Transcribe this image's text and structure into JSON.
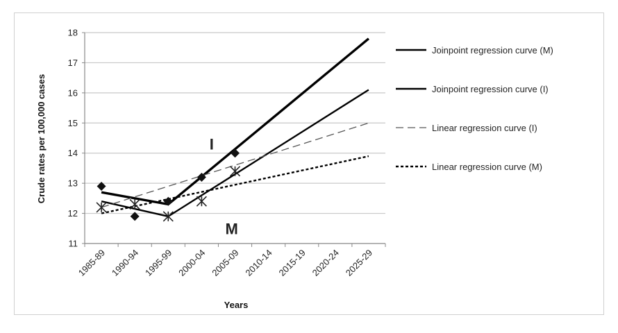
{
  "chart_data": {
    "type": "line",
    "title": "",
    "xlabel": "Years",
    "ylabel": "Crude rates per 100,000 cases",
    "categories": [
      "1985-89",
      "1990-94",
      "1995-99",
      "2000-04",
      "2005-09",
      "2010-14",
      "2015-19",
      "2020-24",
      "2025-29"
    ],
    "ylim": [
      11,
      18
    ],
    "yticks": [
      11,
      12,
      13,
      14,
      15,
      16,
      17,
      18
    ],
    "grid": "horizontal",
    "legend_position": "right",
    "observed": [
      {
        "marker": "diamond",
        "values": [
          12.9,
          11.9,
          12.4,
          13.2,
          14.0
        ]
      },
      {
        "marker": "star",
        "values": [
          12.2,
          12.3,
          11.9,
          12.4,
          13.4
        ]
      }
    ],
    "series": [
      {
        "name": "Joinpoint regression curve (M)",
        "style": "solid",
        "weight": "medium",
        "points": [
          [
            0,
            12.4
          ],
          [
            2,
            11.9
          ],
          [
            8,
            16.1
          ]
        ]
      },
      {
        "name": "Joinpoint regression curve (I)",
        "style": "solid",
        "weight": "heavy",
        "points": [
          [
            0,
            12.7
          ],
          [
            2,
            12.3
          ],
          [
            8,
            17.8
          ]
        ]
      },
      {
        "name": "Linear regression curve (I)",
        "style": "long-dash",
        "weight": "thin",
        "points": [
          [
            0,
            12.2
          ],
          [
            8,
            15.0
          ]
        ]
      },
      {
        "name": "Linear regression curve (M)",
        "style": "short-dash",
        "weight": "medium",
        "points": [
          [
            0,
            12.0
          ],
          [
            8,
            13.9
          ]
        ]
      }
    ],
    "annotations": [
      {
        "text": "I",
        "x": 3.3,
        "y": 14.3
      },
      {
        "text": "M",
        "x": 3.9,
        "y": 11.5
      }
    ]
  }
}
